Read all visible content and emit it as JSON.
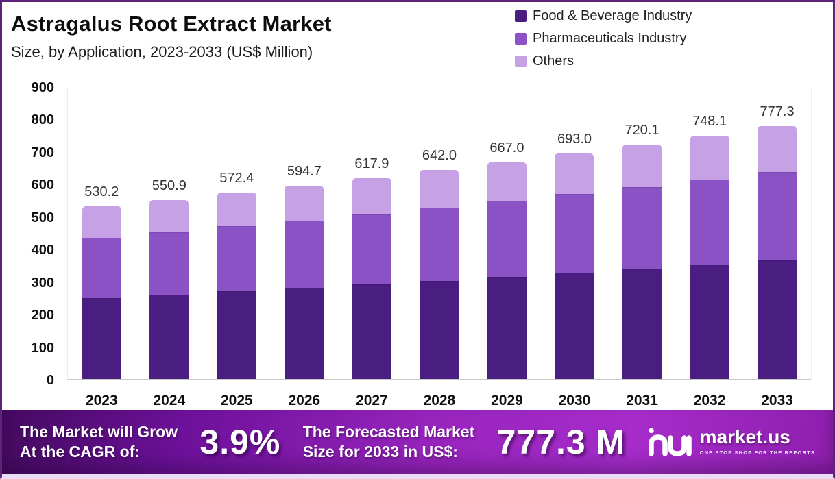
{
  "header": {
    "title": "Astragalus Root Extract Market",
    "subtitle": "Size, by Application, 2023-2033 (US$ Million)"
  },
  "legend": [
    {
      "label": "Food & Beverage Industry",
      "color": "#4a1d80"
    },
    {
      "label": "Pharmaceuticals Industry",
      "color": "#8a52c5"
    },
    {
      "label": "Others",
      "color": "#c6a1e6"
    }
  ],
  "chart_data": {
    "type": "bar",
    "stacked": true,
    "title": "Astragalus Root Extract Market Size, by Application, 2023-2033 (US$ Million)",
    "categories": [
      "2023",
      "2024",
      "2025",
      "2026",
      "2027",
      "2028",
      "2029",
      "2030",
      "2031",
      "2032",
      "2033"
    ],
    "totals": [
      "530.2",
      "550.9",
      "572.4",
      "594.7",
      "617.9",
      "642.0",
      "667.0",
      "693.0",
      "720.1",
      "748.1",
      "777.3"
    ],
    "series": [
      {
        "name": "Food & Beverage Industry",
        "color": "#4a1d80",
        "values": [
          249.2,
          258.9,
          269.0,
          279.5,
          290.4,
          301.7,
          313.5,
          325.7,
          338.4,
          351.6,
          365.3
        ]
      },
      {
        "name": "Pharmaceuticals Industry",
        "color": "#8a52c5",
        "values": [
          185.6,
          192.8,
          200.3,
          208.1,
          216.3,
          224.7,
          233.5,
          242.6,
          252.0,
          261.8,
          272.1
        ]
      },
      {
        "name": "Others",
        "color": "#c6a1e6",
        "values": [
          95.4,
          99.2,
          103.1,
          107.1,
          111.2,
          115.6,
          120.0,
          124.7,
          129.7,
          134.7,
          139.9
        ]
      }
    ],
    "xlabel": "",
    "ylabel": "",
    "ylim": [
      0,
      900
    ],
    "yticks": [
      0,
      100,
      200,
      300,
      400,
      500,
      600,
      700,
      800,
      900
    ],
    "grid": false,
    "legend_position": "top-right"
  },
  "banner": {
    "left_label_line1": "The Market will Grow",
    "left_label_line2": "At the CAGR of:",
    "cagr_value": "3.9%",
    "right_label_line1": "The Forecasted Market",
    "right_label_line2": "Size for 2033 in US$:",
    "forecast_value": "777.3 M",
    "brand": "market.us",
    "brand_tagline": "ONE STOP SHOP FOR THE REPORTS"
  }
}
